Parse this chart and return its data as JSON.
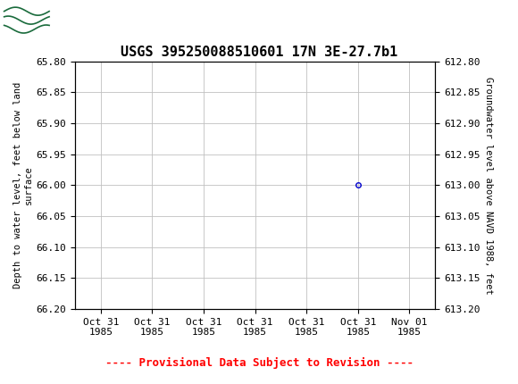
{
  "title": "USGS 395250088510601 17N 3E-27.7b1",
  "title_fontsize": 11,
  "header_color": "#1a6b3c",
  "ylabel_left": "Depth to water level, feet below land\nsurface",
  "ylabel_right": "Groundwater level above NAVD 1988, feet",
  "ylim_left": [
    65.8,
    66.2
  ],
  "ylim_right": [
    612.8,
    613.2
  ],
  "yticks_left": [
    65.8,
    65.85,
    65.9,
    65.95,
    66.0,
    66.05,
    66.1,
    66.15,
    66.2
  ],
  "yticks_right": [
    612.8,
    612.85,
    612.9,
    612.95,
    613.0,
    613.05,
    613.1,
    613.15,
    613.2
  ],
  "data_x_numeric": 5,
  "data_y": [
    66.0
  ],
  "marker_color": "#0000cc",
  "marker_style": "o",
  "marker_size": 4,
  "marker_facecolor": "none",
  "grid_color": "#c0c0c0",
  "grid_linestyle": "-",
  "provisional_text": "---- Provisional Data Subject to Revision ----",
  "provisional_color": "#ff0000",
  "provisional_fontsize": 9,
  "n_xticks": 7,
  "xtick_labels": [
    "Oct 31\n1985",
    "Oct 31\n1985",
    "Oct 31\n1985",
    "Oct 31\n1985",
    "Oct 31\n1985",
    "Oct 31\n1985",
    "Nov 01\n1985"
  ],
  "xlim": [
    0,
    6
  ],
  "background_color": "#ffffff",
  "font_family": "monospace"
}
